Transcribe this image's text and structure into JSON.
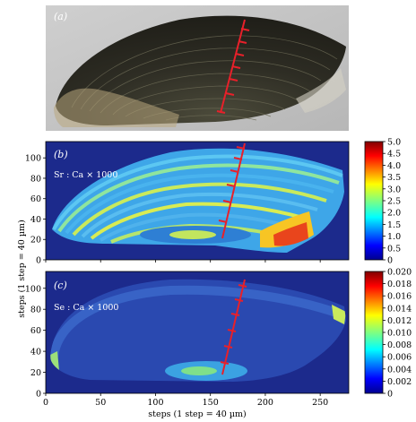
{
  "panels": {
    "a": {
      "label": "(a)"
    },
    "b": {
      "label": "(b)",
      "annotation": "Sr : Ca × 1000"
    },
    "c": {
      "label": "(c)",
      "annotation": "Se : Ca × 1000"
    }
  },
  "axes": {
    "xlabel": "steps (1 step = 40 µm)",
    "ylabel": "steps (1 step = 40 µm)",
    "xticks": [
      "0",
      "50",
      "100",
      "150",
      "200",
      "250"
    ],
    "xticks_values": [
      0,
      50,
      100,
      150,
      200,
      250
    ],
    "xlim": [
      0,
      276
    ],
    "yticks": [
      "0",
      "20",
      "40",
      "60",
      "80",
      "100"
    ],
    "yticks_values": [
      0,
      20,
      40,
      60,
      80,
      100
    ],
    "ylim": [
      0,
      116
    ]
  },
  "colorbars": {
    "b": {
      "ticks": [
        "5.0",
        "4.5",
        "4.0",
        "3.5",
        "3.0",
        "2.5",
        "2.0",
        "1.5",
        "1.0",
        "0.5",
        "0"
      ],
      "values": [
        5.0,
        4.5,
        4.0,
        3.5,
        3.0,
        2.5,
        2.0,
        1.5,
        1.0,
        0.5,
        0
      ],
      "range": [
        0,
        5.0
      ]
    },
    "c": {
      "ticks": [
        "0.020",
        "0.018",
        "0.016",
        "0.014",
        "0.012",
        "0.010",
        "0.008",
        "0.006",
        "0.004",
        "0.002",
        "0"
      ],
      "values": [
        0.02,
        0.018,
        0.016,
        0.014,
        0.012,
        0.01,
        0.008,
        0.006,
        0.004,
        0.002,
        0
      ],
      "range": [
        0,
        0.02
      ]
    }
  },
  "colors": {
    "transect": "#e8202a",
    "background_map": "#1c2a8c",
    "otolith_dark": "#2b2a22"
  }
}
